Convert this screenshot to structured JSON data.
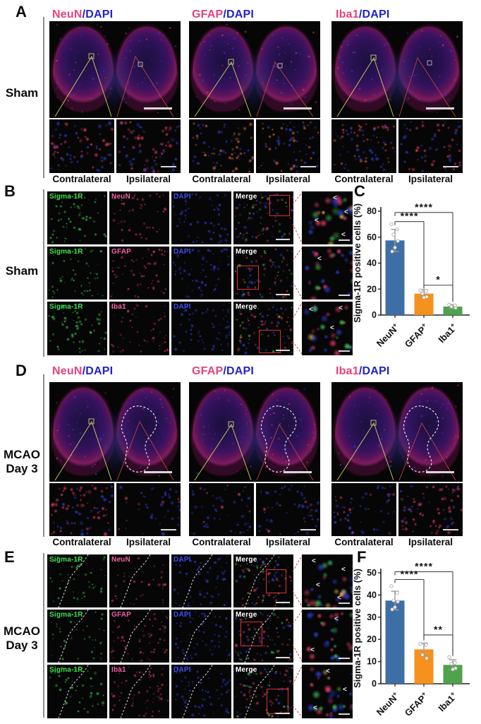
{
  "glyphs": {
    "arrowhead": "<"
  },
  "colors": {
    "header_stain_pink": "#E8417E",
    "header_dapi_blue": "#2222CC",
    "label_green": "#3DE34D",
    "label_pink": "#F160A8",
    "label_blue": "#3D4FF0",
    "label_white": "#ffffff",
    "bar_blue": "#3D6FA6",
    "bar_orange": "#F6911E",
    "bar_green": "#4EA34B"
  },
  "panels": {
    "A": {
      "letter": "A",
      "group_label": "Sham",
      "columns": [
        {
          "stain": "NeuN",
          "counterstain": "/DAPI"
        },
        {
          "stain": "GFAP",
          "counterstain": "/DAPI"
        },
        {
          "stain": "Iba1",
          "counterstain": "/DAPI"
        }
      ],
      "captions": [
        "Contralateral",
        "Ipsilateral"
      ]
    },
    "B": {
      "letter": "B",
      "group_label": "Sham",
      "rows": [
        {
          "labels": [
            "Sigma-1R",
            "NeuN",
            "DAPI",
            "Merge"
          ]
        },
        {
          "labels": [
            "Sigma-1R",
            "GFAP",
            "DAPI",
            "Merge"
          ]
        },
        {
          "labels": [
            "Sigma-1R",
            "Iba1",
            "DAPI",
            "Merge"
          ]
        }
      ]
    },
    "C": {
      "letter": "C"
    },
    "D": {
      "letter": "D",
      "group_label_lines": [
        "MCAO",
        "Day 3"
      ],
      "columns": [
        {
          "stain": "NeuN",
          "counterstain": "/DAPI"
        },
        {
          "stain": "GFAP",
          "counterstain": "/DAPI"
        },
        {
          "stain": "Iba1",
          "counterstain": "/DAPI"
        }
      ],
      "captions": [
        "Contralateral",
        "Ipsilateral"
      ]
    },
    "E": {
      "letter": "E",
      "group_label_lines": [
        "MCAO",
        "Day 3"
      ],
      "rows": [
        {
          "labels": [
            "Sigma-1R",
            "NeuN",
            "DAPI",
            "Merge"
          ]
        },
        {
          "labels": [
            "Sigma-1R",
            "GFAP",
            "DAPI",
            "Merge"
          ]
        },
        {
          "labels": [
            "Sigma-1R",
            "Iba1",
            "DAPI",
            "Merge"
          ]
        }
      ]
    },
    "F": {
      "letter": "F"
    }
  },
  "chart_data": [
    {
      "id": "C",
      "type": "bar",
      "title": "",
      "ylabel": "Sigma-1R positive cells (%)",
      "xlabel": "",
      "categories": [
        "NeuN+",
        "GFAP+",
        "Iba1+"
      ],
      "values": [
        57.5,
        16.5,
        6.5
      ],
      "errors": [
        8.5,
        3.0,
        1.5
      ],
      "points": [
        [
          70,
          66,
          62,
          57,
          52,
          49
        ],
        [
          19,
          18.5,
          16.5,
          14,
          13.5
        ],
        [
          8,
          7.5,
          6.5,
          5.5
        ]
      ],
      "ylim": [
        0,
        80
      ],
      "yticks": [
        0,
        20,
        40,
        60,
        80
      ],
      "grid": false,
      "legend": "none",
      "bar_colors": [
        "#3D6FA6",
        "#F6911E",
        "#4EA34B"
      ],
      "comparisons": [
        {
          "a": 0,
          "b": 1,
          "label": "****",
          "y": 72,
          "drop_to": 21
        },
        {
          "a": 0,
          "b": 2,
          "label": "****",
          "y": 79,
          "drop_to": 10
        },
        {
          "a": 1,
          "b": 2,
          "label": "*",
          "y": 23,
          "drop_to": 10.5
        }
      ]
    },
    {
      "id": "F",
      "type": "bar",
      "title": "",
      "ylabel": "Sigma-1R positive cells (%)",
      "xlabel": "",
      "categories": [
        "NeuN+",
        "GFAP+",
        "Iba1+"
      ],
      "values": [
        37.5,
        15.5,
        8.5
      ],
      "errors": [
        4.2,
        2.8,
        2.3
      ],
      "points": [
        [
          44,
          41,
          37.5,
          37,
          34.5,
          33.5
        ],
        [
          18,
          17.5,
          13,
          11.5
        ],
        [
          12,
          9.5,
          9,
          7,
          6.5
        ]
      ],
      "ylim": [
        0,
        50
      ],
      "yticks": [
        0,
        10,
        20,
        30,
        40,
        50
      ],
      "grid": false,
      "legend": "none",
      "bar_colors": [
        "#3D6FA6",
        "#F6911E",
        "#4EA34B"
      ],
      "comparisons": [
        {
          "a": 0,
          "b": 1,
          "label": "****",
          "y": 47,
          "drop_to": 19.5
        },
        {
          "a": 0,
          "b": 2,
          "label": "****",
          "y": 50.5,
          "drop_to": 13
        },
        {
          "a": 1,
          "b": 2,
          "label": "**",
          "y": 22,
          "drop_to": 12.5
        }
      ]
    }
  ]
}
